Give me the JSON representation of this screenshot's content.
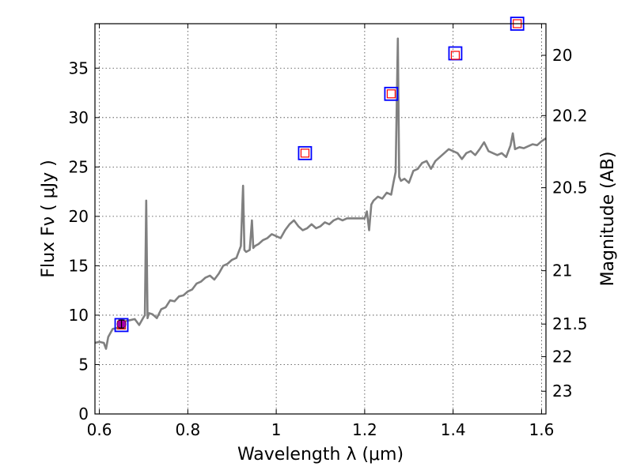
{
  "chart_data": {
    "type": "line",
    "xlabel": "Wavelength  λ (μm)",
    "ylabel": "Flux  Fν  ( μJy )",
    "y2label": "Magnitude (AB)",
    "xlim": [
      0.59,
      1.61
    ],
    "ylim": [
      0,
      39.5
    ],
    "grid": true,
    "x_ticks": [
      0.6,
      0.8,
      1.0,
      1.2,
      1.4,
      1.6
    ],
    "x_tick_labels": [
      "0.6",
      "0.8",
      "1",
      "1.2",
      "1.4",
      "1.6"
    ],
    "y_ticks": [
      0,
      5,
      10,
      15,
      20,
      25,
      30,
      35
    ],
    "y_tick_labels": [
      "0",
      "5",
      "10",
      "15",
      "20",
      "25",
      "30",
      "35"
    ],
    "y2_ticks": [
      {
        "label": "20",
        "flux": 36.3
      },
      {
        "label": "20.2",
        "flux": 30.2
      },
      {
        "label": "20.5",
        "flux": 22.9
      },
      {
        "label": "21",
        "flux": 14.5
      },
      {
        "label": "21.5",
        "flux": 9.1
      },
      {
        "label": "22",
        "flux": 5.8
      },
      {
        "label": "23",
        "flux": 2.3
      }
    ],
    "series": [
      {
        "kind": "spectrum",
        "color": "#808080",
        "x": [
          0.59,
          0.6,
          0.61,
          0.615,
          0.62,
          0.63,
          0.64,
          0.65,
          0.66,
          0.67,
          0.68,
          0.69,
          0.7,
          0.703,
          0.706,
          0.709,
          0.712,
          0.72,
          0.73,
          0.74,
          0.75,
          0.76,
          0.77,
          0.78,
          0.79,
          0.8,
          0.81,
          0.82,
          0.83,
          0.84,
          0.85,
          0.86,
          0.87,
          0.88,
          0.89,
          0.9,
          0.91,
          0.92,
          0.925,
          0.928,
          0.932,
          0.94,
          0.945,
          0.948,
          0.952,
          0.96,
          0.97,
          0.98,
          0.99,
          1.0,
          1.01,
          1.02,
          1.03,
          1.04,
          1.05,
          1.06,
          1.07,
          1.08,
          1.09,
          1.1,
          1.11,
          1.12,
          1.13,
          1.14,
          1.15,
          1.16,
          1.17,
          1.18,
          1.19,
          1.2,
          1.205,
          1.21,
          1.215,
          1.22,
          1.23,
          1.24,
          1.25,
          1.26,
          1.265,
          1.27,
          1.275,
          1.278,
          1.282,
          1.29,
          1.3,
          1.31,
          1.32,
          1.33,
          1.34,
          1.35,
          1.36,
          1.37,
          1.38,
          1.39,
          1.4,
          1.41,
          1.42,
          1.43,
          1.44,
          1.45,
          1.46,
          1.47,
          1.48,
          1.49,
          1.5,
          1.51,
          1.52,
          1.53,
          1.535,
          1.54,
          1.55,
          1.56,
          1.57,
          1.58,
          1.59,
          1.6,
          1.61
        ],
        "y": [
          7.2,
          7.3,
          7.2,
          6.6,
          7.8,
          8.6,
          8.7,
          9.2,
          9.4,
          9.5,
          9.6,
          9.0,
          9.8,
          10.0,
          21.6,
          9.7,
          10.2,
          10.1,
          9.7,
          10.6,
          10.8,
          11.5,
          11.4,
          11.9,
          12.0,
          12.4,
          12.6,
          13.2,
          13.4,
          13.8,
          14.0,
          13.6,
          14.2,
          15.0,
          15.2,
          15.6,
          15.8,
          17.0,
          23.1,
          16.6,
          16.4,
          16.6,
          19.6,
          16.8,
          17.0,
          17.2,
          17.6,
          17.8,
          18.2,
          18.0,
          17.8,
          18.6,
          19.2,
          19.6,
          19.0,
          18.6,
          18.8,
          19.2,
          18.8,
          19.0,
          19.4,
          19.2,
          19.6,
          19.8,
          19.6,
          19.8,
          19.8,
          19.8,
          19.8,
          19.8,
          20.5,
          18.6,
          21.2,
          21.6,
          22.0,
          21.8,
          22.4,
          22.2,
          23.4,
          24.5,
          38.0,
          24.0,
          23.6,
          23.8,
          23.4,
          24.6,
          24.8,
          25.4,
          25.6,
          24.8,
          25.6,
          26.0,
          26.4,
          26.8,
          26.6,
          26.4,
          25.8,
          26.4,
          26.6,
          26.2,
          26.8,
          27.5,
          26.6,
          26.4,
          26.2,
          26.4,
          26.0,
          27.2,
          28.4,
          26.8,
          27.0,
          26.9,
          27.1,
          27.3,
          27.2,
          27.6,
          27.9
        ]
      },
      {
        "kind": "photometry-blue-squares",
        "color": "#0000ff",
        "x": [
          0.65,
          1.065,
          1.26,
          1.405,
          1.545
        ],
        "y": [
          9.0,
          26.4,
          32.4,
          36.5,
          39.5
        ]
      },
      {
        "kind": "model-red-squares",
        "color": "#ff0000",
        "x": [
          0.65,
          1.065,
          1.26,
          1.405,
          1.545
        ],
        "y": [
          9.0,
          26.4,
          32.4,
          36.3,
          39.5
        ]
      },
      {
        "kind": "observed-magenta-point",
        "color": "#aa00aa",
        "x": [
          0.65
        ],
        "y": [
          9.1
        ],
        "yerr": [
          0.4
        ]
      }
    ]
  }
}
